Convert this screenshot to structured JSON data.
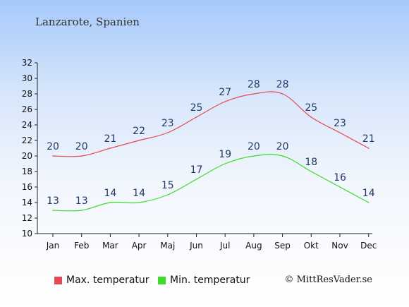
{
  "header": {
    "title": "Lanzarote, Spanien"
  },
  "legend": {
    "max_label": "Max. temperatur",
    "min_label": "Min. temperatur"
  },
  "footer": {
    "copyright": "© MittResVader.se"
  },
  "colors": {
    "max": "#e8484f",
    "min": "#3ddc2a",
    "labels": "#1f3a66"
  },
  "chart_data": {
    "type": "line",
    "title": "Lanzarote, Spanien",
    "xlabel": "",
    "ylabel": "",
    "categories": [
      "Jan",
      "Feb",
      "Mar",
      "Apr",
      "Maj",
      "Jun",
      "Jul",
      "Aug",
      "Sep",
      "Okt",
      "Nov",
      "Dec"
    ],
    "yticks": [
      10,
      12,
      14,
      16,
      18,
      20,
      22,
      24,
      26,
      28,
      30,
      32
    ],
    "ylim": [
      10,
      32
    ],
    "grid": false,
    "legend_position": "bottom",
    "series": [
      {
        "name": "Max. temperatur",
        "color": "#e8484f",
        "values": [
          20,
          20,
          21,
          22,
          23,
          25,
          27,
          28,
          28,
          25,
          23,
          21
        ]
      },
      {
        "name": "Min. temperatur",
        "color": "#3ddc2a",
        "values": [
          13,
          13,
          14,
          14,
          15,
          17,
          19,
          20,
          20,
          18,
          16,
          14
        ]
      }
    ]
  }
}
